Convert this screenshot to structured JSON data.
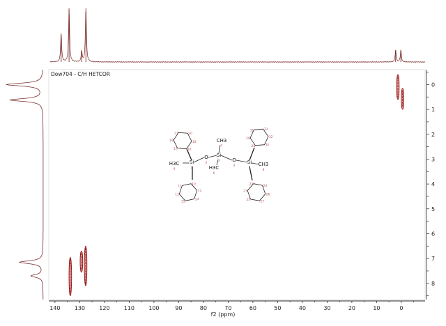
{
  "chart_data": {
    "type": "scatter",
    "title": "Dow704 - C/H HETCOR",
    "xlabel": "f2 (ppm)",
    "ylabel": "",
    "xlim": [
      142.5,
      -9.6
    ],
    "ylim": [
      -0.6,
      8.65
    ],
    "x_ticks": [
      "140",
      "130",
      "120",
      "110",
      "100",
      "90",
      "80",
      "70",
      "60",
      "50",
      "40",
      "30",
      "20",
      "10",
      "0"
    ],
    "x_tick_values": [
      140,
      130,
      120,
      110,
      100,
      90,
      80,
      70,
      60,
      50,
      40,
      30,
      20,
      10,
      0
    ],
    "y_ticks": [
      "0",
      "1",
      "2",
      "3",
      "4",
      "5",
      "6",
      "7",
      "8"
    ],
    "y_tick_values": [
      0,
      1,
      2,
      3,
      4,
      5,
      6,
      7,
      8
    ],
    "grid": false,
    "cross_peaks": [
      {
        "f2": 133.8,
        "f1_from": 6.95,
        "f1_to": 8.5
      },
      {
        "f2": 129.3,
        "f1_from": 6.7,
        "f1_to": 7.55
      },
      {
        "f2": 127.6,
        "f1_from": 6.5,
        "f1_to": 8.1
      },
      {
        "f2": 1.4,
        "f1_from": -0.4,
        "f1_to": 0.6
      },
      {
        "f2": -0.5,
        "f1_from": 0.15,
        "f1_to": 1.0
      }
    ],
    "f2_projection_peaks": [
      {
        "ppm": 137.5,
        "height": 0.53
      },
      {
        "ppm": 134.3,
        "height": 1.0
      },
      {
        "ppm": 129.2,
        "height": 0.2
      },
      {
        "ppm": 127.5,
        "height": 1.0
      },
      {
        "ppm": 2.3,
        "height": 0.22
      },
      {
        "ppm": 0.2,
        "height": 0.22
      }
    ],
    "f1_projection_peaks": [
      {
        "ppm": 0.0,
        "height": 1.0
      },
      {
        "ppm": 0.62,
        "height": 0.9
      },
      {
        "ppm": 7.15,
        "height": 0.65
      },
      {
        "ppm": 7.7,
        "height": 0.33
      }
    ],
    "colors": {
      "spectrum": "#7a2a2a",
      "contour": "#a01818",
      "axis": "#222222"
    }
  },
  "molecule": {
    "atoms": [
      "Si",
      "O",
      "Si",
      "O",
      "Si",
      "CH3",
      "H3C",
      "H3C",
      "CH3"
    ],
    "atom_numbers": [
      "1",
      "2",
      "3",
      "4",
      "5",
      "7",
      "6",
      "9",
      "8"
    ],
    "ring_numbers": [
      [
        "16",
        "17",
        "19",
        "21",
        "20",
        "18"
      ],
      [
        "10",
        "12",
        "14",
        "15",
        "13",
        "11"
      ],
      [
        "28",
        "29",
        "31",
        "33",
        "32",
        "30"
      ],
      [
        "22",
        "24",
        "26",
        "27",
        "25",
        "23"
      ]
    ]
  }
}
